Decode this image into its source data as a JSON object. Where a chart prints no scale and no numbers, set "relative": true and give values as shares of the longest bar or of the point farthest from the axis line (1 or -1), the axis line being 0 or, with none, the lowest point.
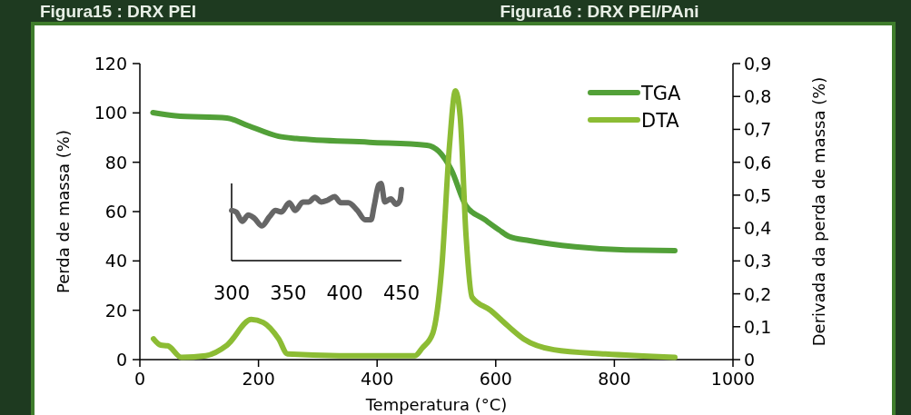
{
  "chart_data": [
    {
      "type": "line",
      "xlabel": "Temperatura (°C)",
      "ylabel": "Perda de massa (%)",
      "y2label": "Derivada da perda de massa (%)",
      "annotations": [
        "Figura15 : DRX PEI",
        "Figura16 : DRX PEI/PAni"
      ],
      "xlim": [
        0,
        1000
      ],
      "xticks": [
        0,
        200,
        400,
        600,
        800,
        1000
      ],
      "ylim": [
        0,
        120
      ],
      "yticks": [
        0,
        20,
        40,
        60,
        80,
        100,
        120
      ],
      "y2lim": [
        0,
        0.9
      ],
      "y2ticks": [
        {
          "value": 0,
          "label": "0"
        },
        {
          "value": 0.1,
          "label": "0,1"
        },
        {
          "value": 0.2,
          "label": "0,2"
        },
        {
          "value": 0.3,
          "label": "0,3"
        },
        {
          "value": 0.4,
          "label": "0,4"
        },
        {
          "value": 0.5,
          "label": "0,5"
        },
        {
          "value": 0.6,
          "label": "0,6"
        },
        {
          "value": 0.7,
          "label": "0,7"
        },
        {
          "value": 0.8,
          "label": "0,8"
        },
        {
          "value": 0.9,
          "label": "0,9"
        }
      ],
      "legend": "top right",
      "grid": false,
      "marker": "none",
      "series": [
        {
          "name": "TGA",
          "color": "#52a038",
          "x": [
            22,
            60,
            147,
            183,
            234,
            264,
            387,
            484,
            504,
            525,
            550,
            581,
            606,
            622,
            657,
            734,
            811,
            902
          ],
          "values": [
            100.1,
            98.8,
            97.9,
            94.8,
            90.5,
            89.6,
            88.1,
            86.9,
            84.4,
            77,
            62.3,
            56.8,
            52.5,
            50,
            48.2,
            45.7,
            44.5,
            44.2
          ]
        },
        {
          "name": "DTA",
          "color": "#8cbc34",
          "axis": "y2",
          "x": [
            23,
            35,
            47,
            70,
            111,
            147,
            188,
            208,
            234,
            249,
            336,
            428,
            464,
            476,
            494,
            509,
            522,
            532,
            540,
            550,
            560,
            591,
            622,
            647,
            698,
            785,
            902
          ],
          "values": [
            0.063,
            0.044,
            0.042,
            0.007,
            0.012,
            0.044,
            0.122,
            0.113,
            0.063,
            0.017,
            0.012,
            0.012,
            0.012,
            0.035,
            0.081,
            0.28,
            0.65,
            0.817,
            0.74,
            0.375,
            0.19,
            0.15,
            0.1,
            0.063,
            0.03,
            0.017,
            0.007
          ]
        }
      ]
    },
    {
      "type": "line",
      "relative": true,
      "xlim": [
        300,
        450
      ],
      "xticks": [
        300,
        350,
        400,
        450
      ],
      "tick_labels": "x",
      "marker": "none",
      "series": [
        {
          "color": "#666666",
          "x": [
            300,
            304,
            309.4,
            314.7,
            320,
            326.8,
            333.5,
            338.8,
            344,
            350.9,
            356.3,
            362.9,
            368.2,
            373.6,
            379,
            384.3,
            391,
            396.4,
            403.1,
            411.1,
            417.9,
            423.2,
            425.9,
            429.9,
            432,
            435.3,
            440.6,
            445.4,
            448.7,
            450
          ],
          "values": [
            0.65,
            0.63,
            0.51,
            0.59,
            0.55,
            0.45,
            0.57,
            0.65,
            0.63,
            0.75,
            0.65,
            0.76,
            0.76,
            0.82,
            0.76,
            0.78,
            0.83,
            0.75,
            0.75,
            0.65,
            0.53,
            0.53,
            0.71,
            0.98,
            1,
            0.76,
            0.8,
            0.73,
            0.78,
            0.92
          ]
        }
      ]
    }
  ]
}
